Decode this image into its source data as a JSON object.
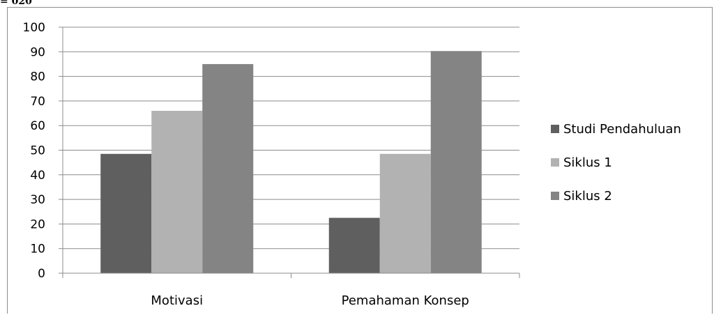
{
  "header_fragment": "= 020",
  "chart_data": {
    "type": "bar",
    "categories": [
      "Motivasi",
      "Pemahaman Konsep"
    ],
    "series": [
      {
        "name": "Studi Pendahuluan",
        "values": [
          48.5,
          22.5
        ],
        "color": "#5f5f5f"
      },
      {
        "name": "Siklus 1",
        "values": [
          66,
          48.5
        ],
        "color": "#b2b2b2"
      },
      {
        "name": "Siklus 2",
        "values": [
          85,
          90.3
        ],
        "color": "#848484"
      }
    ],
    "ylim": [
      0,
      100
    ],
    "yticks": [
      0,
      10,
      20,
      30,
      40,
      50,
      60,
      70,
      80,
      90,
      100
    ],
    "grid": true,
    "legend_position": "right"
  }
}
